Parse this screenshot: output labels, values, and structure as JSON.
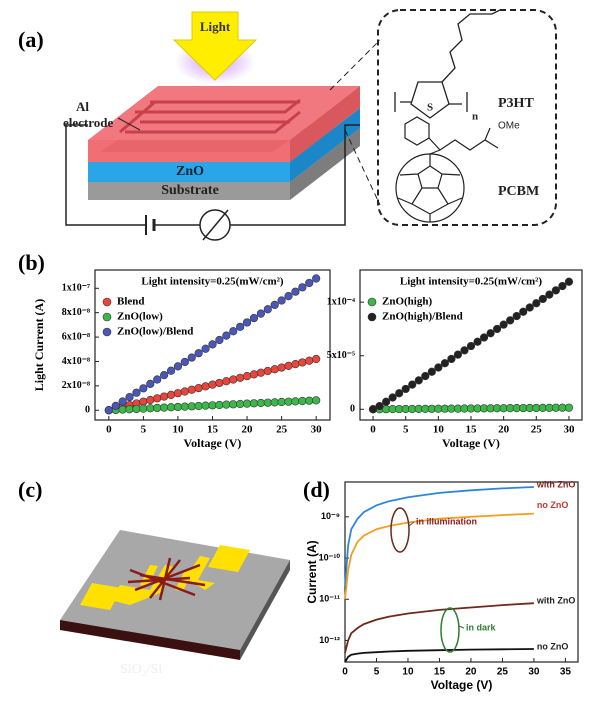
{
  "panels": [
    "(a)",
    "(b)",
    "(c)",
    "(d)"
  ],
  "diagram": {
    "light": "Light",
    "al_electrode": [
      "Al",
      "electrode"
    ],
    "zno": "ZnO",
    "substrate": "Substrate",
    "p3ht": "P3HT",
    "pcbm": "PCBM",
    "sulfur": "S",
    "n": "n",
    "ome": "OMe",
    "sio2": "SiO₂/Si"
  },
  "chart_data": [
    {
      "type": "scatter",
      "title": "Light intensity=0.25(mW/cm²)",
      "x_label": "Voltage (V)",
      "y_label": "Light Current (A)",
      "x": [
        0,
        1,
        2,
        3,
        4,
        5,
        6,
        7,
        8,
        9,
        10,
        11,
        12,
        13,
        14,
        15,
        16,
        17,
        18,
        19,
        20,
        21,
        22,
        23,
        24,
        25,
        26,
        27,
        28,
        29,
        30
      ],
      "series": [
        {
          "name": "Blend",
          "color": "#e8463a",
          "values": [
            0,
            1.4e-09,
            2.8e-09,
            4.2e-09,
            5.6e-09,
            7e-09,
            8.4e-09,
            9.8e-09,
            1.12e-08,
            1.26e-08,
            1.4e-08,
            1.54e-08,
            1.68e-08,
            1.82e-08,
            1.96e-08,
            2.1e-08,
            2.24e-08,
            2.38e-08,
            2.52e-08,
            2.66e-08,
            2.8e-08,
            2.94e-08,
            3.08e-08,
            3.22e-08,
            3.36e-08,
            3.5e-08,
            3.64e-08,
            3.78e-08,
            3.92e-08,
            4.06e-08,
            4.2e-08
          ]
        },
        {
          "name": "ZnO(low)",
          "color": "#3cb84a",
          "values": [
            0,
            2.7e-10,
            5.4e-10,
            8.1e-10,
            1.08e-09,
            1.35e-09,
            1.62e-09,
            1.89e-09,
            2.16e-09,
            2.43e-09,
            2.7e-09,
            2.97e-09,
            3.24e-09,
            3.51e-09,
            3.78e-09,
            4.05e-09,
            4.32e-09,
            4.59e-09,
            4.86e-09,
            5.13e-09,
            5.4e-09,
            5.67e-09,
            5.94e-09,
            6.21e-09,
            6.48e-09,
            6.75e-09,
            7.02e-09,
            7.29e-09,
            7.56e-09,
            7.83e-09,
            8.1e-09
          ]
        },
        {
          "name": "ZnO(low)/Blend",
          "color": "#4a56b8",
          "values": [
            0,
            3.6e-09,
            7.2e-09,
            1.08e-08,
            1.44e-08,
            1.8e-08,
            2.16e-08,
            2.52e-08,
            2.88e-08,
            3.24e-08,
            3.6e-08,
            3.96e-08,
            4.32e-08,
            4.68e-08,
            5.04e-08,
            5.4e-08,
            5.76e-08,
            6.12e-08,
            6.48e-08,
            6.84e-08,
            7.2e-08,
            7.56e-08,
            7.92e-08,
            8.28e-08,
            8.64e-08,
            9e-08,
            9.36e-08,
            9.72e-08,
            1.008e-07,
            1.044e-07,
            1.08e-07
          ]
        }
      ],
      "xlim": [
        -2,
        32
      ],
      "xticks": [
        0,
        5,
        10,
        15,
        20,
        25,
        30
      ],
      "ylim": [
        -8e-09,
        1.15e-07
      ],
      "yticks": [
        0,
        {
          "value": 2e-08,
          "label": "2x10⁻⁸"
        },
        {
          "value": 4e-08,
          "label": "4x10⁻⁸"
        },
        {
          "value": 6e-08,
          "label": "6x10⁻⁸"
        },
        {
          "value": 8e-08,
          "label": "8x10⁻⁸"
        },
        {
          "value": 1e-07,
          "label": "1x10⁻⁷"
        }
      ],
      "legend": "upper left",
      "grid": false
    },
    {
      "type": "scatter",
      "title": "Light intensity=0.25(mW/cm²)",
      "x_label": "Voltage (V)",
      "x": [
        0,
        1,
        2,
        3,
        4,
        5,
        6,
        7,
        8,
        9,
        10,
        11,
        12,
        13,
        14,
        15,
        16,
        17,
        18,
        19,
        20,
        21,
        22,
        23,
        24,
        25,
        26,
        27,
        28,
        29,
        30
      ],
      "series": [
        {
          "name": "ZnO(high)",
          "color": "#3cb84a",
          "values": [
            0,
            5e-08,
            1e-07,
            1.5e-07,
            2e-07,
            2.5e-07,
            3e-07,
            3.5e-07,
            4e-07,
            4.5e-07,
            5e-07,
            5.5e-07,
            6e-07,
            6.5e-07,
            7e-07,
            7.5e-07,
            8e-07,
            8.5e-07,
            9e-07,
            9.5e-07,
            1e-06,
            1.05e-06,
            1.1e-06,
            1.15e-06,
            1.2e-06,
            1.25e-06,
            1.3e-06,
            1.35e-06,
            1.4e-06,
            1.45e-06,
            1.5e-06
          ]
        },
        {
          "name": "ZnO(high)/Blend",
          "color": "#222222",
          "values": [
            0,
            3e-06,
            7e-06,
            1.1e-05,
            1.5e-05,
            1.9e-05,
            2.3e-05,
            2.7e-05,
            3.1e-05,
            3.5e-05,
            3.9e-05,
            4.3e-05,
            4.7e-05,
            5.1e-05,
            5.5e-05,
            5.9e-05,
            6.3e-05,
            6.7e-05,
            7.1e-05,
            7.5e-05,
            7.9e-05,
            8.3e-05,
            8.7e-05,
            9.1e-05,
            9.5e-05,
            9.9e-05,
            0.000103,
            0.000107,
            0.000111,
            0.000115,
            0.000119
          ]
        }
      ],
      "xlim": [
        -2,
        32
      ],
      "xticks": [
        0,
        5,
        10,
        15,
        20,
        25,
        30
      ],
      "ylim": [
        -1e-05,
        0.00013
      ],
      "yticks": [
        0,
        {
          "value": 5e-05,
          "label": "5x10⁻⁵"
        },
        {
          "value": 0.0001,
          "label": "1x10⁻⁴"
        }
      ],
      "legend": "upper left",
      "grid": false
    },
    {
      "type": "line",
      "x_label": "Voltage (V)",
      "y_label": "Current (A)",
      "yscale": "log",
      "x": [
        0,
        0.5,
        1,
        2,
        3,
        5,
        7,
        10,
        15,
        20,
        25,
        30
      ],
      "series": [
        {
          "name": "with ZnO",
          "color": "#2f86d8",
          "values": [
            2e-11,
            2e-10,
            5e-10,
            9e-10,
            1.3e-09,
            1.9e-09,
            2.4e-09,
            3e-09,
            3.8e-09,
            4.4e-09,
            4.9e-09,
            5.3e-09
          ]
        },
        {
          "name": "no ZnO",
          "color": "#f0a020",
          "values": [
            1e-11,
            5e-11,
            1.2e-10,
            2.5e-10,
            3.5e-10,
            5e-10,
            6e-10,
            7.3e-10,
            9e-10,
            1e-09,
            1.1e-09,
            1.2e-09
          ]
        },
        {
          "name": "with ZnO",
          "color": "#6b2a1a",
          "values": [
            5e-13,
            1e-12,
            1.5e-12,
            2e-12,
            2.5e-12,
            3.2e-12,
            3.8e-12,
            4.5e-12,
            5.5e-12,
            6.3e-12,
            7.2e-12,
            8e-12
          ]
        },
        {
          "name": "no ZnO",
          "color": "#111111",
          "values": [
            3e-13,
            4e-13,
            4.5e-13,
            4.8e-13,
            5e-13,
            5.2e-13,
            5.4e-13,
            5.6e-13,
            5.8e-13,
            6e-13,
            6.1e-13,
            6.2e-13
          ]
        }
      ],
      "annotations": [
        "in illumination",
        "in dark"
      ],
      "xlim": [
        0,
        37
      ],
      "xticks": [
        0,
        5,
        10,
        15,
        20,
        25,
        30,
        35
      ],
      "ylim": [
        3e-13,
        7e-09
      ],
      "yticks": [
        {
          "value": 1e-12,
          "label": "10⁻¹²"
        },
        {
          "value": 1e-11,
          "label": "10⁻¹¹"
        },
        {
          "value": 1e-10,
          "label": "10⁻¹⁰"
        },
        {
          "value": 1e-09,
          "label": "10⁻⁹"
        }
      ],
      "grid": false
    }
  ]
}
